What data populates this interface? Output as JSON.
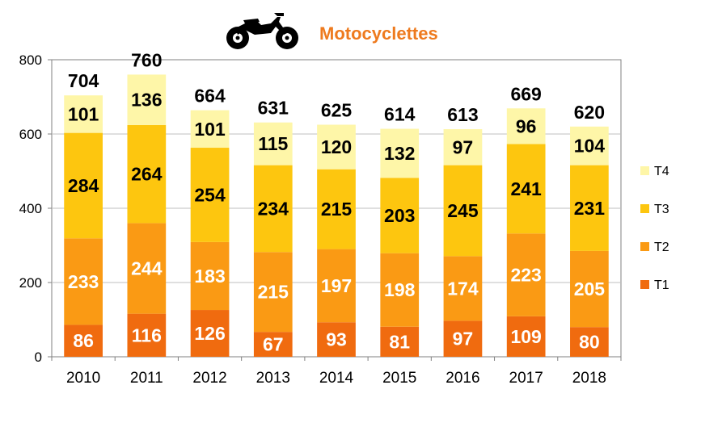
{
  "chart_data": {
    "type": "bar",
    "stacked": true,
    "title": "Motocyclettes",
    "title_icon": "motorcycle-icon",
    "categories": [
      "2010",
      "2011",
      "2012",
      "2013",
      "2014",
      "2015",
      "2016",
      "2017",
      "2018"
    ],
    "series": [
      {
        "name": "T1",
        "color": "#F06B0F",
        "label_color": "#FFFFFF",
        "values": [
          86,
          116,
          126,
          67,
          93,
          81,
          97,
          109,
          80
        ]
      },
      {
        "name": "T2",
        "color": "#FA9A14",
        "label_color": "#FFFFFF",
        "values": [
          233,
          244,
          183,
          215,
          197,
          198,
          174,
          223,
          205
        ]
      },
      {
        "name": "T3",
        "color": "#FDC60F",
        "label_color": "#000000",
        "values": [
          284,
          264,
          254,
          234,
          215,
          203,
          245,
          241,
          231
        ]
      },
      {
        "name": "T4",
        "color": "#FEF6A8",
        "label_color": "#000000",
        "values": [
          101,
          136,
          101,
          115,
          120,
          132,
          97,
          96,
          104
        ]
      }
    ],
    "totals": [
      704,
      760,
      664,
      631,
      625,
      614,
      613,
      669,
      620
    ],
    "ylim": [
      0,
      800
    ],
    "yticks": [
      0,
      200,
      400,
      600,
      800
    ],
    "grid": true,
    "legend_position": "right",
    "xlabel": "",
    "ylabel": ""
  },
  "colors": {
    "title": "#EE7A1E",
    "gridline": "#BFBFBF",
    "axis": "#808080"
  }
}
